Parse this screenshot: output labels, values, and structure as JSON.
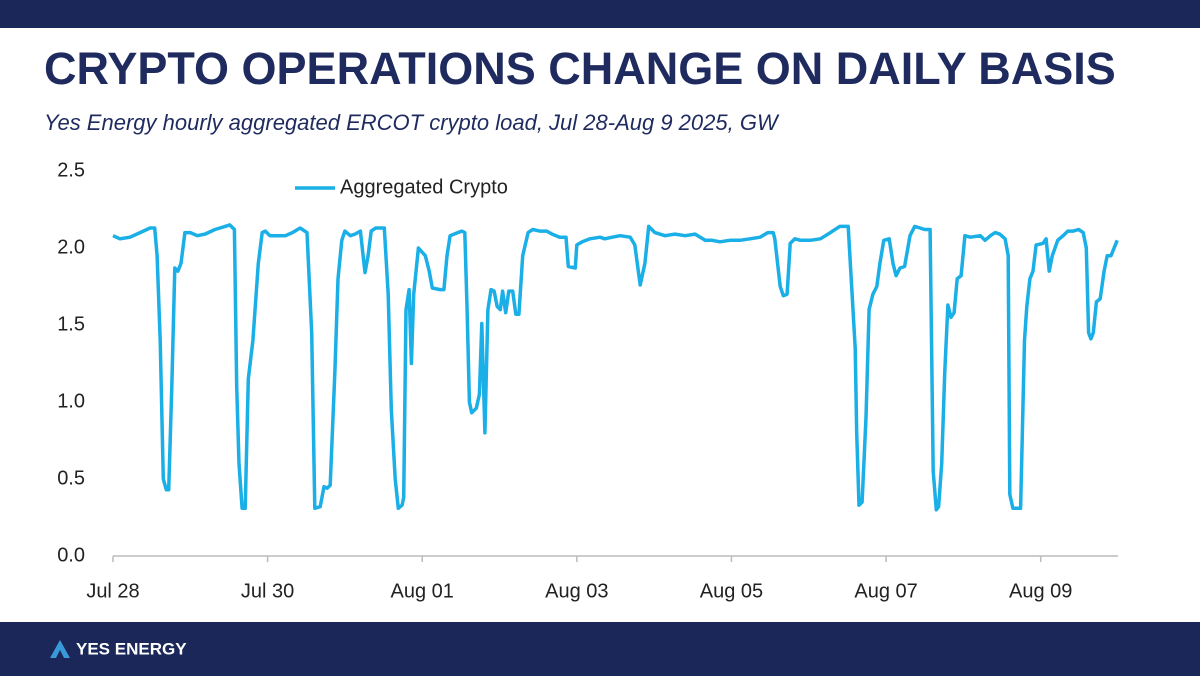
{
  "chart_data": {
    "type": "line",
    "title": "CRYPTO OPERATIONS CHANGE ON DAILY BASIS",
    "subtitle": "Yes Energy hourly aggregated ERCOT crypto load, Jul 28-Aug 9 2025, GW",
    "x": [
      0,
      0.09,
      0.22,
      0.35,
      0.48,
      0.54,
      0.57,
      0.61,
      0.65,
      0.69,
      0.72,
      0.76,
      0.8,
      0.84,
      0.88,
      0.93,
      1.0,
      1.09,
      1.19,
      1.32,
      1.45,
      1.51,
      1.57,
      1.6,
      1.63,
      1.67,
      1.71,
      1.75,
      1.81,
      1.88,
      1.93,
      1.97,
      2.03,
      2.1,
      2.23,
      2.32,
      2.42,
      2.48,
      2.51,
      2.57,
      2.61,
      2.68,
      2.73,
      2.77,
      2.81,
      2.87,
      2.91,
      2.96,
      3.0,
      3.07,
      3.13,
      3.2,
      3.26,
      3.3,
      3.34,
      3.4,
      3.51,
      3.56,
      3.6,
      3.65,
      3.69,
      3.74,
      3.76,
      3.79,
      3.83,
      3.86,
      3.89,
      3.95,
      4.04,
      4.09,
      4.13,
      4.23,
      4.28,
      4.32,
      4.36,
      4.46,
      4.51,
      4.55,
      4.58,
      4.61,
      4.64,
      4.7,
      4.74,
      4.77,
      4.81,
      4.85,
      4.89,
      4.93,
      4.97,
      5.01,
      5.04,
      5.08,
      5.12,
      5.17,
      5.21,
      5.25,
      5.3,
      5.37,
      5.43,
      5.52,
      5.61,
      5.68,
      5.78,
      5.86,
      5.89,
      5.98,
      6.0,
      6.07,
      6.17,
      6.3,
      6.36,
      6.46,
      6.56,
      6.69,
      6.75,
      6.82,
      6.88,
      6.93,
      7.01,
      7.14,
      7.27,
      7.4,
      7.53,
      7.66,
      7.75,
      7.85,
      7.98,
      8.11,
      8.24,
      8.37,
      8.47,
      8.54,
      8.56,
      8.63,
      8.67,
      8.72,
      8.76,
      8.82,
      8.89,
      9.02,
      9.15,
      9.28,
      9.4,
      9.51,
      9.56,
      9.6,
      9.62,
      9.65,
      9.69,
      9.74,
      9.78,
      9.83,
      9.88,
      9.92,
      9.97,
      10.04,
      10.09,
      10.13,
      10.18,
      10.24,
      10.31,
      10.37,
      10.44,
      10.5,
      10.57,
      10.61,
      10.65,
      10.68,
      10.72,
      10.76,
      10.8,
      10.84,
      10.88,
      10.92,
      10.97,
      11.02,
      11.09,
      11.22,
      11.28,
      11.35,
      11.41,
      11.47,
      11.54,
      11.58,
      11.6,
      11.64,
      11.71,
      11.74,
      11.79,
      11.82,
      11.86,
      11.9,
      11.94,
      12.03,
      12.07,
      12.11,
      12.15,
      12.22,
      12.29,
      12.35,
      12.42,
      12.49,
      12.55,
      12.59,
      12.62,
      12.65,
      12.68,
      12.72,
      12.77,
      12.82,
      12.86,
      12.91,
      12.95,
      12.99
    ],
    "series": [
      {
        "name": "Aggregated Crypto",
        "color": "#1aafe6",
        "values": [
          2.08,
          2.06,
          2.07,
          2.1,
          2.13,
          2.13,
          1.95,
          1.4,
          0.5,
          0.43,
          0.43,
          1.1,
          1.87,
          1.85,
          1.9,
          2.1,
          2.1,
          2.08,
          2.09,
          2.12,
          2.14,
          2.15,
          2.12,
          1.1,
          0.6,
          0.31,
          0.31,
          1.15,
          1.4,
          1.9,
          2.1,
          2.11,
          2.08,
          2.08,
          2.08,
          2.1,
          2.13,
          2.11,
          2.1,
          1.45,
          0.31,
          0.32,
          0.45,
          0.44,
          0.46,
          1.2,
          1.8,
          2.05,
          2.11,
          2.08,
          2.09,
          2.11,
          1.84,
          1.95,
          2.11,
          2.13,
          2.13,
          1.7,
          0.95,
          0.5,
          0.31,
          0.33,
          0.38,
          1.6,
          1.73,
          1.25,
          1.7,
          2.0,
          1.95,
          1.85,
          1.74,
          1.73,
          1.73,
          1.95,
          2.08,
          2.1,
          2.11,
          2.1,
          1.6,
          1.0,
          0.93,
          0.96,
          1.05,
          1.51,
          0.8,
          1.6,
          1.73,
          1.72,
          1.62,
          1.6,
          1.72,
          1.58,
          1.72,
          1.72,
          1.57,
          1.57,
          1.95,
          2.1,
          2.12,
          2.11,
          2.11,
          2.09,
          2.07,
          2.07,
          1.88,
          1.87,
          2.02,
          2.04,
          2.06,
          2.07,
          2.06,
          2.07,
          2.08,
          2.07,
          2.02,
          1.76,
          1.9,
          2.14,
          2.1,
          2.08,
          2.09,
          2.08,
          2.09,
          2.05,
          2.05,
          2.04,
          2.05,
          2.05,
          2.06,
          2.07,
          2.1,
          2.1,
          2.06,
          1.75,
          1.69,
          1.7,
          2.03,
          2.06,
          2.05,
          2.05,
          2.06,
          2.1,
          2.14,
          2.14,
          1.7,
          1.35,
          0.8,
          0.33,
          0.35,
          0.9,
          1.6,
          1.7,
          1.75,
          1.9,
          2.05,
          2.06,
          1.9,
          1.82,
          1.87,
          1.88,
          2.08,
          2.14,
          2.13,
          2.12,
          2.12,
          0.55,
          0.3,
          0.32,
          0.6,
          1.2,
          1.63,
          1.55,
          1.58,
          1.8,
          1.82,
          2.08,
          2.07,
          2.08,
          2.05,
          2.08,
          2.1,
          2.09,
          2.06,
          1.95,
          0.4,
          0.31,
          0.31,
          0.31,
          1.4,
          1.62,
          1.8,
          1.85,
          2.02,
          2.03,
          2.06,
          1.85,
          1.95,
          2.05,
          2.08,
          2.11,
          2.11,
          2.12,
          2.1,
          2.0,
          1.45,
          1.41,
          1.45,
          1.65,
          1.67,
          1.85,
          1.95,
          1.95,
          2.0,
          2.05
        ]
      }
    ],
    "xlim": [
      0,
      13
    ],
    "xticks": [
      {
        "value": 0,
        "label": "Jul 28"
      },
      {
        "value": 2,
        "label": "Jul 30"
      },
      {
        "value": 4,
        "label": "Aug 01"
      },
      {
        "value": 6,
        "label": "Aug 03"
      },
      {
        "value": 8,
        "label": "Aug 05"
      },
      {
        "value": 10,
        "label": "Aug 07"
      },
      {
        "value": 12,
        "label": "Aug 09"
      }
    ],
    "ylim": [
      0,
      2.5
    ],
    "yticks": [
      {
        "value": 0,
        "label": "0.0"
      },
      {
        "value": 0.5,
        "label": "0.5"
      },
      {
        "value": 1,
        "label": "1.0"
      },
      {
        "value": 1.5,
        "label": "1.5"
      },
      {
        "value": 2,
        "label": "2.0"
      },
      {
        "value": 2.5,
        "label": "2.5"
      }
    ],
    "grid": false,
    "legend": "top-left"
  },
  "footer": {
    "brand": "YES ENERGY"
  }
}
